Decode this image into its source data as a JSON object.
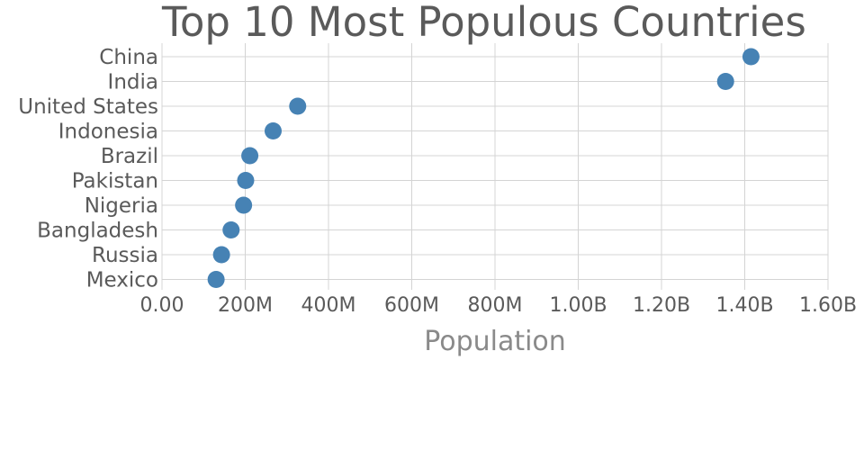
{
  "chart_data": {
    "type": "scatter",
    "title": "Top 10 Most Populous Countries",
    "xlabel": "Population",
    "ylabel": "",
    "xlim": [
      0,
      1600000000
    ],
    "x_tick_values": [
      0,
      200000000,
      400000000,
      600000000,
      800000000,
      1000000000,
      1200000000,
      1400000000,
      1600000000
    ],
    "x_tick_labels": [
      "0.00",
      "200M",
      "400M",
      "600M",
      "800M",
      "1.00B",
      "1.20B",
      "1.40B",
      "1.60B"
    ],
    "categories": [
      "China",
      "India",
      "United States",
      "Indonesia",
      "Brazil",
      "Pakistan",
      "Nigeria",
      "Bangladesh",
      "Russia",
      "Mexico"
    ],
    "values": [
      1415000000,
      1354000000,
      326000000,
      267000000,
      211000000,
      201000000,
      196000000,
      166000000,
      143000000,
      130000000
    ],
    "grid": true,
    "legend": false,
    "marker_color": "#4682b4"
  }
}
